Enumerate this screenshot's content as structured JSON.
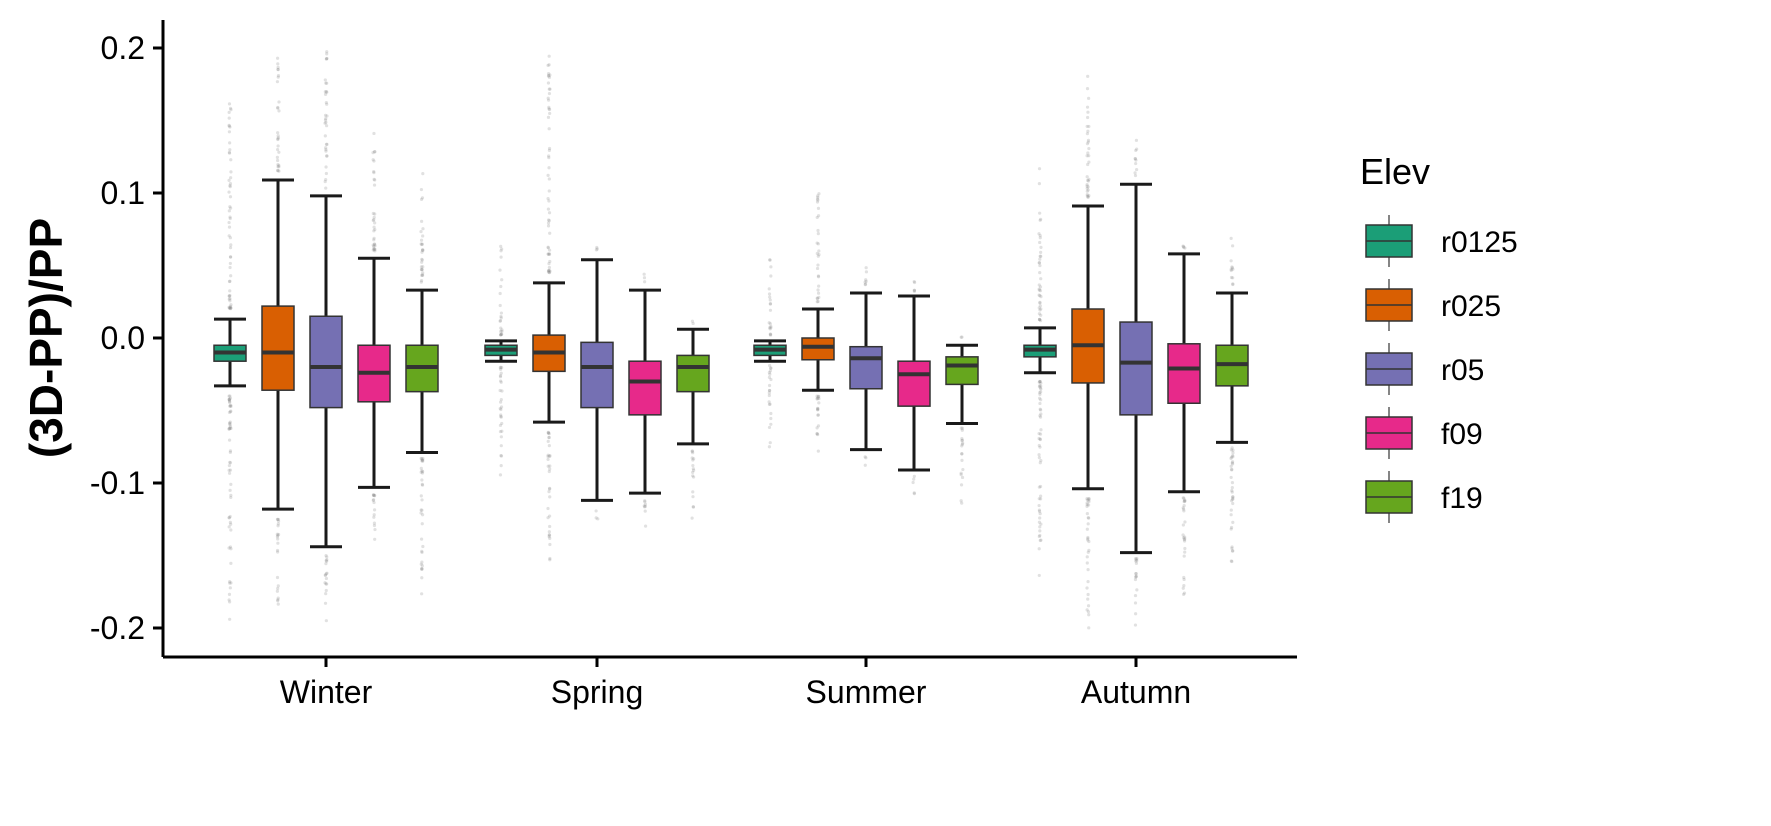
{
  "chart_data": {
    "type": "boxplot",
    "ylabel": "(3D-PP)/PP",
    "xlabel": "",
    "ylim": [
      -0.22,
      0.22
    ],
    "yticks": [
      -0.2,
      -0.1,
      0.0,
      0.1,
      0.2
    ],
    "ytick_labels": [
      "-0.2",
      "-0.1",
      "0.0",
      "0.1",
      "0.2"
    ],
    "grid": false,
    "legend": {
      "title": "Elev",
      "position": "right"
    },
    "categories": [
      "Winter",
      "Spring",
      "Summer",
      "Autumn"
    ],
    "series": [
      {
        "name": "r0125",
        "color": "#1b9e77",
        "boxes": [
          {
            "whisker_low": -0.033,
            "q1": -0.016,
            "median": -0.01,
            "q3": -0.005,
            "whisker_high": 0.013
          },
          {
            "whisker_low": -0.016,
            "q1": -0.012,
            "median": -0.008,
            "q3": -0.005,
            "whisker_high": -0.002
          },
          {
            "whisker_low": -0.016,
            "q1": -0.012,
            "median": -0.008,
            "q3": -0.005,
            "whisker_high": -0.002
          },
          {
            "whisker_low": -0.024,
            "q1": -0.013,
            "median": -0.008,
            "q3": -0.005,
            "whisker_high": 0.007
          }
        ],
        "outliers": [
          {
            "lo": -0.2,
            "hi": -0.04
          },
          {
            "lo": -0.1,
            "hi": -0.02
          },
          {
            "lo": -0.08,
            "hi": -0.018
          },
          {
            "lo": -0.175,
            "hi": -0.03
          }
        ],
        "outliers_high": [
          {
            "lo": 0.02,
            "hi": 0.175
          },
          {
            "lo": 0.002,
            "hi": 0.066
          },
          {
            "lo": 0.002,
            "hi": 0.058
          },
          {
            "lo": 0.012,
            "hi": 0.12
          }
        ]
      },
      {
        "name": "r025",
        "color": "#d95f02",
        "boxes": [
          {
            "whisker_low": -0.118,
            "q1": -0.036,
            "median": -0.01,
            "q3": 0.022,
            "whisker_high": 0.109
          },
          {
            "whisker_low": -0.058,
            "q1": -0.023,
            "median": -0.01,
            "q3": 0.002,
            "whisker_high": 0.038
          },
          {
            "whisker_low": -0.036,
            "q1": -0.015,
            "median": -0.006,
            "q3": 0.0,
            "whisker_high": 0.02
          },
          {
            "whisker_low": -0.104,
            "q1": -0.031,
            "median": -0.005,
            "q3": 0.02,
            "whisker_high": 0.091
          }
        ],
        "outliers": [
          {
            "lo": -0.185,
            "hi": -0.125
          },
          {
            "lo": -0.155,
            "hi": -0.065
          },
          {
            "lo": -0.095,
            "hi": -0.04
          },
          {
            "lo": -0.2,
            "hi": -0.11
          }
        ],
        "outliers_high": [
          {
            "lo": 0.115,
            "hi": 0.195
          },
          {
            "lo": 0.045,
            "hi": 0.195
          },
          {
            "lo": 0.025,
            "hi": 0.105
          },
          {
            "lo": 0.097,
            "hi": 0.19
          }
        ]
      },
      {
        "name": "r05",
        "color": "#7570b3",
        "boxes": [
          {
            "whisker_low": -0.144,
            "q1": -0.048,
            "median": -0.02,
            "q3": 0.015,
            "whisker_high": 0.098
          },
          {
            "whisker_low": -0.112,
            "q1": -0.048,
            "median": -0.02,
            "q3": -0.003,
            "whisker_high": 0.054
          },
          {
            "whisker_low": -0.077,
            "q1": -0.035,
            "median": -0.014,
            "q3": -0.006,
            "whisker_high": 0.031
          },
          {
            "whisker_low": -0.148,
            "q1": -0.053,
            "median": -0.017,
            "q3": 0.011,
            "whisker_high": 0.106
          }
        ],
        "outliers": [
          {
            "lo": -0.2,
            "hi": -0.15
          },
          {
            "lo": -0.125,
            "hi": -0.116
          },
          {
            "lo": -0.09,
            "hi": -0.082
          },
          {
            "lo": -0.2,
            "hi": -0.152
          }
        ],
        "outliers_high": [
          {
            "lo": 0.103,
            "hi": 0.198
          },
          {
            "lo": 0.06,
            "hi": 0.068
          },
          {
            "lo": 0.036,
            "hi": 0.055
          },
          {
            "lo": 0.112,
            "hi": 0.14
          }
        ]
      },
      {
        "name": "f09",
        "color": "#e7298a",
        "boxes": [
          {
            "whisker_low": -0.103,
            "q1": -0.044,
            "median": -0.024,
            "q3": -0.005,
            "whisker_high": 0.055
          },
          {
            "whisker_low": -0.107,
            "q1": -0.053,
            "median": -0.03,
            "q3": -0.016,
            "whisker_high": 0.033
          },
          {
            "whisker_low": -0.091,
            "q1": -0.047,
            "median": -0.025,
            "q3": -0.016,
            "whisker_high": 0.029
          },
          {
            "whisker_low": -0.106,
            "q1": -0.045,
            "median": -0.021,
            "q3": -0.004,
            "whisker_high": 0.058
          }
        ],
        "outliers": [
          {
            "lo": -0.148,
            "hi": -0.108
          },
          {
            "lo": -0.135,
            "hi": -0.112
          },
          {
            "lo": -0.108,
            "hi": -0.095
          },
          {
            "lo": -0.185,
            "hi": -0.11
          }
        ],
        "outliers_high": [
          {
            "lo": 0.06,
            "hi": 0.15
          },
          {
            "lo": 0.038,
            "hi": 0.045
          },
          {
            "lo": 0.032,
            "hi": 0.045
          },
          {
            "lo": 0.062,
            "hi": 0.072
          }
        ]
      },
      {
        "name": "f19",
        "color": "#66a61e",
        "boxes": [
          {
            "whisker_low": -0.079,
            "q1": -0.037,
            "median": -0.02,
            "q3": -0.005,
            "whisker_high": 0.033
          },
          {
            "whisker_low": -0.073,
            "q1": -0.037,
            "median": -0.02,
            "q3": -0.012,
            "whisker_high": 0.006
          },
          {
            "whisker_low": -0.059,
            "q1": -0.032,
            "median": -0.019,
            "q3": -0.013,
            "whisker_high": -0.005
          },
          {
            "whisker_low": -0.072,
            "q1": -0.033,
            "median": -0.018,
            "q3": -0.005,
            "whisker_high": 0.031
          }
        ],
        "outliers": [
          {
            "lo": -0.178,
            "hi": -0.083
          },
          {
            "lo": -0.125,
            "hi": -0.078
          },
          {
            "lo": -0.115,
            "hi": -0.062
          },
          {
            "lo": -0.175,
            "hi": -0.075
          }
        ],
        "outliers_high": [
          {
            "lo": 0.038,
            "hi": 0.12
          },
          {
            "lo": 0.01,
            "hi": 0.012
          },
          {
            "lo": 0.0,
            "hi": 0.002
          },
          {
            "lo": 0.036,
            "hi": 0.07
          }
        ]
      }
    ]
  }
}
